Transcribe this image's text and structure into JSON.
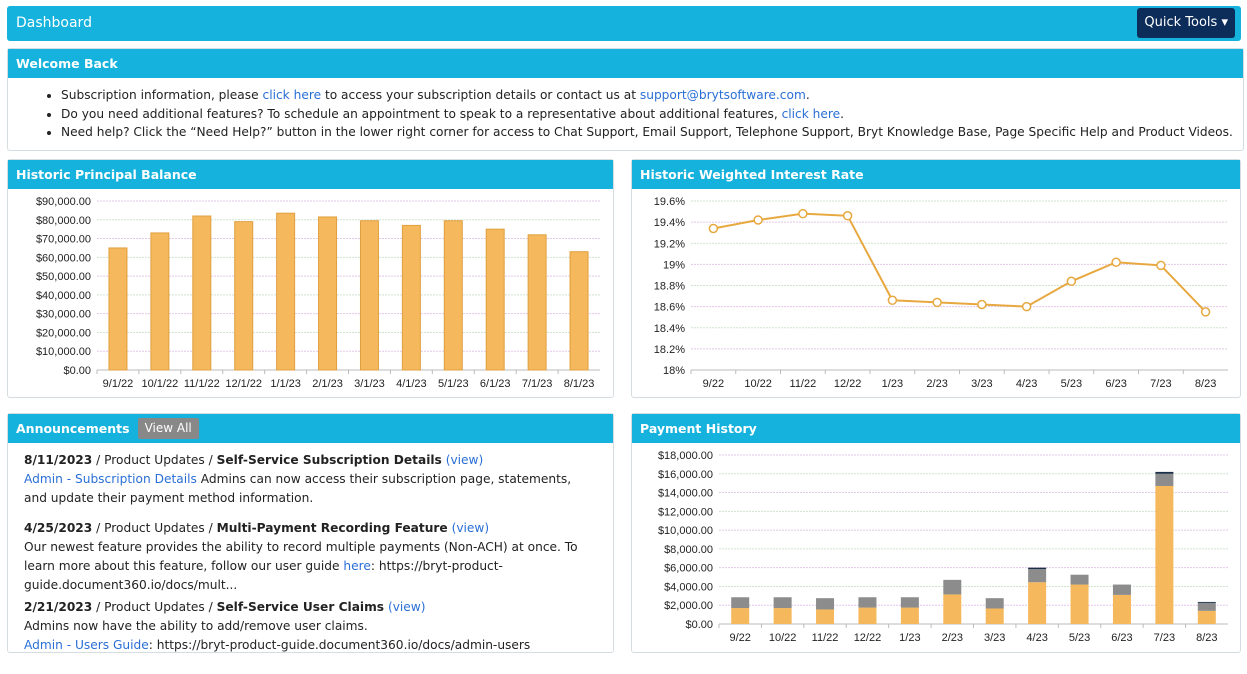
{
  "header": {
    "title": "Dashboard",
    "quick_tools": "Quick Tools"
  },
  "welcome": {
    "title": "Welcome Back",
    "line1": {
      "pre": "Subscription information, please ",
      "link": "click here",
      "mid": " to access your subscription details or contact us at ",
      "email": "support@brytsoftware.com",
      "post": "."
    },
    "line2": {
      "pre": "Do you need additional features? To schedule an appointment to speak to a representative about additional features, ",
      "link": "click here",
      "post": "."
    },
    "line3": "Need help? Click the “Need Help?” button in the lower right corner for access to Chat Support, Email Support, Telephone Support, Bryt Knowledge Base, Page Specific Help and Product Videos."
  },
  "announcements": {
    "title": "Announcements",
    "view_all": "View All",
    "items": [
      {
        "date": "8/11/2023",
        "category": " / Product Updates / ",
        "title": "Self-Service Subscription Details",
        "view": "(view)",
        "link": "Admin - Subscription Details",
        "body": " Admins can now access their subscription page, statements, and update their payment method information."
      },
      {
        "date": "4/25/2023",
        "category": " / Product Updates / ",
        "title": "Multi-Payment Recording Feature",
        "view": "(view)",
        "body_pre": "Our newest feature provides the ability to record multiple payments (Non-ACH) at once. To learn more about this feature, follow our user guide ",
        "link": "here",
        "body_post": ": https://bryt-product-guide.document360.io/docs/mult..."
      },
      {
        "date": "2/21/2023",
        "category": " / Product Updates / ",
        "title": "Self-Service User Claims",
        "view": "(view)",
        "body": "Admins now have the ability to add/remove user claims.",
        "link": "Admin - Users Guide",
        "body_post": ": https://bryt-product-guide.document360.io/docs/admin-users"
      }
    ]
  },
  "colors": {
    "header": "#14b2dc",
    "bar": "#f5b85c",
    "gray": "#8c8c8c",
    "navy": "#1c2f4a",
    "line": "#e8a840"
  },
  "chart_data": [
    {
      "title": "Historic Principal Balance",
      "type": "bar",
      "categories": [
        "9/1/22",
        "10/1/22",
        "11/1/22",
        "12/1/22",
        "1/1/23",
        "2/1/23",
        "3/1/23",
        "4/1/23",
        "5/1/23",
        "6/1/23",
        "7/1/23",
        "8/1/23"
      ],
      "values": [
        65000,
        73000,
        82000,
        79000,
        83500,
        81500,
        79500,
        77000,
        79500,
        75000,
        72000,
        63000
      ],
      "ylim": [
        0,
        90000
      ],
      "yticks": [
        "$0.00",
        "$10,000.00",
        "$20,000.00",
        "$30,000.00",
        "$40,000.00",
        "$50,000.00",
        "$60,000.00",
        "$70,000.00",
        "$80,000.00",
        "$90,000.00"
      ]
    },
    {
      "title": "Historic Weighted Interest Rate",
      "type": "line",
      "categories": [
        "9/22",
        "10/22",
        "11/22",
        "12/22",
        "1/23",
        "2/23",
        "3/23",
        "4/23",
        "5/23",
        "6/23",
        "7/23",
        "8/23"
      ],
      "values": [
        19.34,
        19.42,
        19.48,
        19.46,
        18.66,
        18.64,
        18.62,
        18.6,
        18.84,
        19.02,
        18.99,
        18.55
      ],
      "ylim": [
        18,
        19.6
      ],
      "yticks": [
        "18%",
        "18.2%",
        "18.4%",
        "18.6%",
        "18.8%",
        "19%",
        "19.2%",
        "19.4%",
        "19.6%"
      ]
    },
    {
      "title": "Payment History",
      "type": "bar",
      "stacked": true,
      "categories": [
        "9/22",
        "10/22",
        "11/22",
        "12/22",
        "1/23",
        "2/23",
        "3/23",
        "4/23",
        "5/23",
        "6/23",
        "7/23",
        "8/23"
      ],
      "series": [
        {
          "values": [
            1700,
            1700,
            1550,
            1750,
            1750,
            3150,
            1650,
            4450,
            4200,
            3100,
            14700,
            1400
          ]
        },
        {
          "values": [
            1150,
            1150,
            1200,
            1100,
            1100,
            1550,
            1100,
            1400,
            1050,
            1100,
            1300,
            850
          ]
        },
        {
          "values": [
            0,
            0,
            0,
            0,
            0,
            0,
            0,
            150,
            0,
            0,
            200,
            100
          ]
        }
      ],
      "ylim": [
        0,
        18000
      ],
      "yticks": [
        "$0.00",
        "$2,000.00",
        "$4,000.00",
        "$6,000.00",
        "$8,000.00",
        "$10,000.00",
        "$12,000.00",
        "$14,000.00",
        "$16,000.00",
        "$18,000.00"
      ]
    }
  ]
}
